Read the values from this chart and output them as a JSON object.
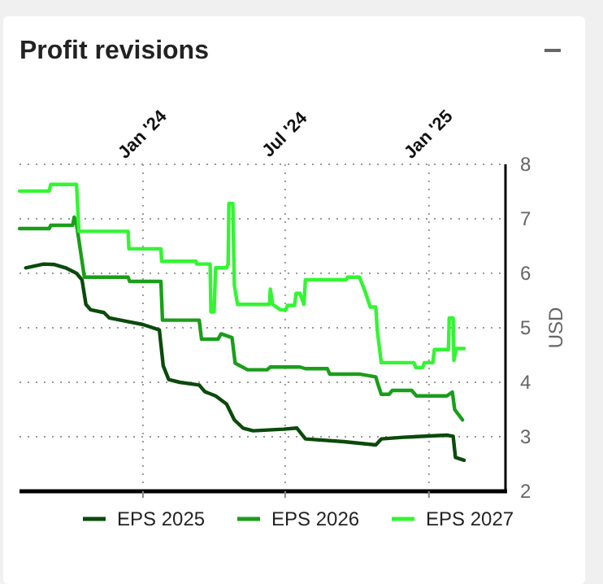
{
  "chart_data": {
    "type": "line",
    "title": "Profit revisions",
    "ylabel": "USD",
    "xlim": [
      "2023-07-27",
      "2025-04-09"
    ],
    "xticks": [
      {
        "value": "2024-01-01",
        "label": "Jan '24"
      },
      {
        "value": "2024-07-01",
        "label": "Jul '24"
      },
      {
        "value": "2025-01-01",
        "label": "Jan '25"
      }
    ],
    "ylim": [
      2,
      8
    ],
    "yticks": [
      2,
      3,
      4,
      5,
      6,
      7,
      8
    ],
    "grid": true,
    "legend": "bottom",
    "line_style": "solid",
    "marker": "none",
    "series": [
      {
        "name": "EPS 2025",
        "color": "#0b4a0b",
        "x": [
          "2023-08-04",
          "2023-08-27",
          "2023-09-10",
          "2023-09-24",
          "2023-10-08",
          "2023-10-15",
          "2023-10-20",
          "2023-10-26",
          "2023-11-12",
          "2023-11-19",
          "2023-12-10",
          "2024-01-01",
          "2024-01-22",
          "2024-01-27",
          "2024-02-03",
          "2024-02-17",
          "2024-03-13",
          "2024-03-20",
          "2024-04-03",
          "2024-04-17",
          "2024-04-27",
          "2024-05-08",
          "2024-05-21",
          "2024-06-29",
          "2024-07-16",
          "2024-07-27",
          "2024-09-14",
          "2024-10-25",
          "2024-11-01",
          "2024-11-29",
          "2025-01-24",
          "2025-02-01",
          "2025-02-04",
          "2025-02-15"
        ],
        "values": [
          6.1,
          6.17,
          6.16,
          6.1,
          6.0,
          5.88,
          5.43,
          5.33,
          5.28,
          5.18,
          5.12,
          5.06,
          4.96,
          4.3,
          4.05,
          4.0,
          3.95,
          3.83,
          3.75,
          3.6,
          3.31,
          3.16,
          3.11,
          3.14,
          3.16,
          2.96,
          2.91,
          2.85,
          2.96,
          2.99,
          3.03,
          3.01,
          2.62,
          2.57
        ]
      },
      {
        "name": "EPS 2026",
        "color": "#1a9e1a",
        "x": [
          "2023-07-27",
          "2023-09-03",
          "2023-09-05",
          "2023-10-03",
          "2023-10-05",
          "2023-10-08",
          "2023-10-18",
          "2023-12-13",
          "2023-12-15",
          "2024-01-24",
          "2024-01-26",
          "2024-03-13",
          "2024-03-16",
          "2024-04-06",
          "2024-04-10",
          "2024-04-24",
          "2024-04-28",
          "2024-05-14",
          "2024-06-08",
          "2024-06-12",
          "2024-07-20",
          "2024-07-27",
          "2024-08-24",
          "2024-08-27",
          "2024-10-04",
          "2024-10-25",
          "2024-10-27",
          "2024-11-01",
          "2024-11-11",
          "2024-11-15",
          "2024-12-10",
          "2024-12-16",
          "2025-01-24",
          "2025-01-31",
          "2025-02-03",
          "2025-02-13"
        ],
        "values": [
          6.82,
          6.82,
          6.88,
          6.88,
          7.03,
          6.9,
          5.93,
          5.93,
          5.85,
          5.85,
          5.14,
          5.14,
          4.79,
          4.79,
          4.89,
          4.82,
          4.35,
          4.23,
          4.23,
          4.28,
          4.28,
          4.25,
          4.25,
          4.15,
          4.15,
          4.1,
          4.0,
          3.78,
          3.78,
          3.85,
          3.85,
          3.75,
          3.75,
          3.82,
          3.5,
          3.31
        ]
      },
      {
        "name": "EPS 2027",
        "color": "#33f533",
        "x": [
          "2023-07-27",
          "2023-09-03",
          "2023-09-05",
          "2023-10-08",
          "2023-10-11",
          "2023-12-13",
          "2023-12-14",
          "2024-01-24",
          "2024-01-25",
          "2024-03-09",
          "2024-03-10",
          "2024-03-27",
          "2024-03-28",
          "2024-04-01",
          "2024-04-03",
          "2024-04-17",
          "2024-04-19",
          "2024-04-20",
          "2024-04-25",
          "2024-04-27",
          "2024-05-01",
          "2024-06-11",
          "2024-06-12",
          "2024-06-15",
          "2024-06-25",
          "2024-07-02",
          "2024-07-04",
          "2024-07-13",
          "2024-07-15",
          "2024-07-20",
          "2024-07-25",
          "2024-07-27",
          "2024-09-17",
          "2024-09-19",
          "2024-10-04",
          "2024-10-11",
          "2024-10-18",
          "2024-10-25",
          "2024-10-27",
          "2024-11-01",
          "2024-12-13",
          "2024-12-15",
          "2024-12-24",
          "2024-12-26",
          "2025-01-06",
          "2025-01-08",
          "2025-01-26",
          "2025-01-27",
          "2025-02-01",
          "2025-02-02",
          "2025-02-05",
          "2025-02-15"
        ],
        "values": [
          7.51,
          7.51,
          7.63,
          7.63,
          6.77,
          6.77,
          6.45,
          6.45,
          6.22,
          6.22,
          6.17,
          6.17,
          5.29,
          5.29,
          6.1,
          6.1,
          6.17,
          7.28,
          7.28,
          5.78,
          5.43,
          5.43,
          5.71,
          5.43,
          5.33,
          5.33,
          5.41,
          5.41,
          5.63,
          5.63,
          5.43,
          5.88,
          5.88,
          5.93,
          5.93,
          5.68,
          5.38,
          5.38,
          4.94,
          4.36,
          4.36,
          4.27,
          4.27,
          4.36,
          4.36,
          4.6,
          4.6,
          5.18,
          5.18,
          4.4,
          4.62,
          4.62
        ]
      }
    ]
  }
}
